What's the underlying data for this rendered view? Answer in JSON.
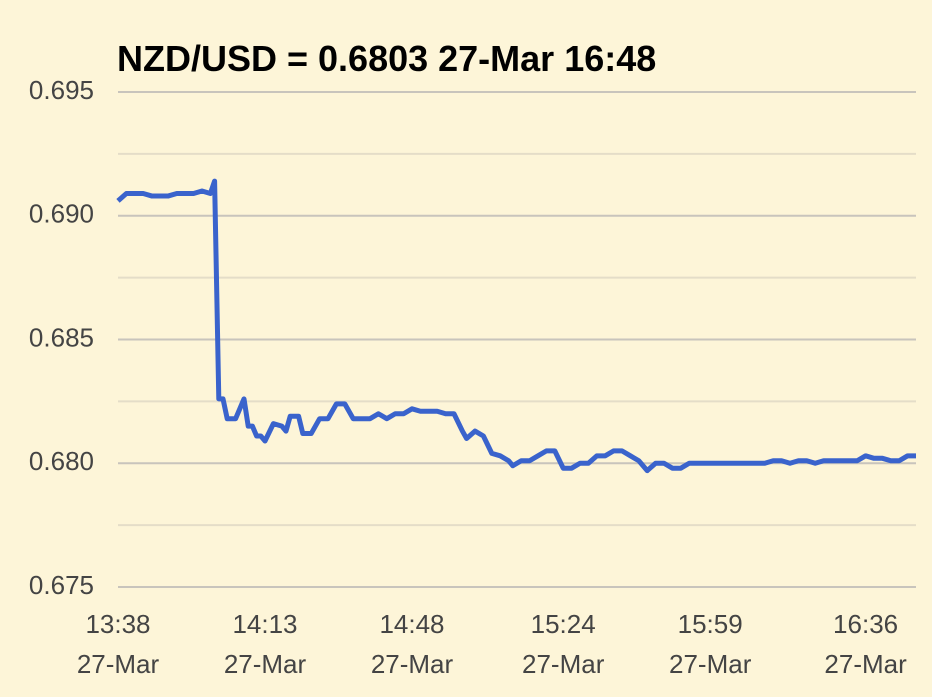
{
  "chart_data": {
    "type": "line",
    "title": "NZD/USD = 0.6803 27-Mar 16:48",
    "x": [
      "13:38",
      "13:40",
      "13:42",
      "13:44",
      "13:46",
      "13:48",
      "13:50",
      "13:52",
      "13:54",
      "13:56",
      "13:58",
      "14:00",
      "14:01",
      "14:02",
      "14:03",
      "14:04",
      "14:06",
      "14:08",
      "14:09",
      "14:10",
      "14:11",
      "14:12",
      "14:13",
      "14:15",
      "14:17",
      "14:18",
      "14:19",
      "14:21",
      "14:22",
      "14:24",
      "14:26",
      "14:28",
      "14:30",
      "14:32",
      "14:34",
      "14:36",
      "14:38",
      "14:40",
      "14:42",
      "14:44",
      "14:46",
      "14:48",
      "14:50",
      "14:52",
      "14:54",
      "14:56",
      "14:58",
      "15:00",
      "15:01",
      "15:03",
      "15:05",
      "15:07",
      "15:09",
      "15:11",
      "15:12",
      "15:14",
      "15:16",
      "15:18",
      "15:20",
      "15:22",
      "15:24",
      "15:26",
      "15:28",
      "15:30",
      "15:32",
      "15:34",
      "15:36",
      "15:38",
      "15:40",
      "15:42",
      "15:44",
      "15:46",
      "15:48",
      "15:50",
      "15:52",
      "15:54",
      "15:56",
      "15:58",
      "16:00",
      "16:02",
      "16:04",
      "16:06",
      "16:08",
      "16:10",
      "16:12",
      "16:14",
      "16:16",
      "16:18",
      "16:20",
      "16:22",
      "16:24",
      "16:26",
      "16:28",
      "16:30",
      "16:32",
      "16:34",
      "16:36",
      "16:38",
      "16:40",
      "16:42",
      "16:44",
      "16:46",
      "16:48"
    ],
    "series": [
      {
        "name": "NZD/USD",
        "color": "#3a63cc",
        "values": [
          0.6906,
          0.6909,
          0.6909,
          0.6909,
          0.6908,
          0.6908,
          0.6908,
          0.6909,
          0.6909,
          0.6909,
          0.691,
          0.6909,
          0.6914,
          0.6826,
          0.6826,
          0.6818,
          0.6818,
          0.6826,
          0.6815,
          0.6815,
          0.6811,
          0.6811,
          0.6809,
          0.6816,
          0.6815,
          0.6813,
          0.6819,
          0.6819,
          0.6812,
          0.6812,
          0.6818,
          0.6818,
          0.6824,
          0.6824,
          0.6818,
          0.6818,
          0.6818,
          0.682,
          0.6818,
          0.682,
          0.682,
          0.6822,
          0.6821,
          0.6821,
          0.6821,
          0.682,
          0.682,
          0.6813,
          0.681,
          0.6813,
          0.6811,
          0.6804,
          0.6803,
          0.6801,
          0.6799,
          0.6801,
          0.6801,
          0.6803,
          0.6805,
          0.6805,
          0.6798,
          0.6798,
          0.68,
          0.68,
          0.6803,
          0.6803,
          0.6805,
          0.6805,
          0.6803,
          0.6801,
          0.6797,
          0.68,
          0.68,
          0.6798,
          0.6798,
          0.68,
          0.68,
          0.68,
          0.68,
          0.68,
          0.68,
          0.68,
          0.68,
          0.68,
          0.68,
          0.6801,
          0.6801,
          0.68,
          0.6801,
          0.6801,
          0.68,
          0.6801,
          0.6801,
          0.6801,
          0.6801,
          0.6801,
          0.6803,
          0.6802,
          0.6802,
          0.6801,
          0.6801,
          0.6803,
          0.6803
        ]
      }
    ],
    "xlim": [
      "13:38",
      "16:48"
    ],
    "xticks": [
      {
        "value": "13:38",
        "label": "13:38\n27-Mar"
      },
      {
        "value": "14:13",
        "label": "14:13\n27-Mar"
      },
      {
        "value": "14:48",
        "label": "14:48\n27-Mar"
      },
      {
        "value": "15:24",
        "label": "15:24\n27-Mar"
      },
      {
        "value": "15:59",
        "label": "15:59\n27-Mar"
      },
      {
        "value": "16:36",
        "label": "16:36\n27-Mar"
      }
    ],
    "ylim": [
      0.675,
      0.695
    ],
    "yticks": [
      0.695,
      {
        "value": 0.69,
        "label": "0.690"
      },
      0.685,
      {
        "value": 0.68,
        "label": "0.680"
      },
      0.675
    ],
    "minor_yticks": [
      0.6925,
      0.6875,
      0.6825,
      0.6775
    ],
    "grid": true
  }
}
